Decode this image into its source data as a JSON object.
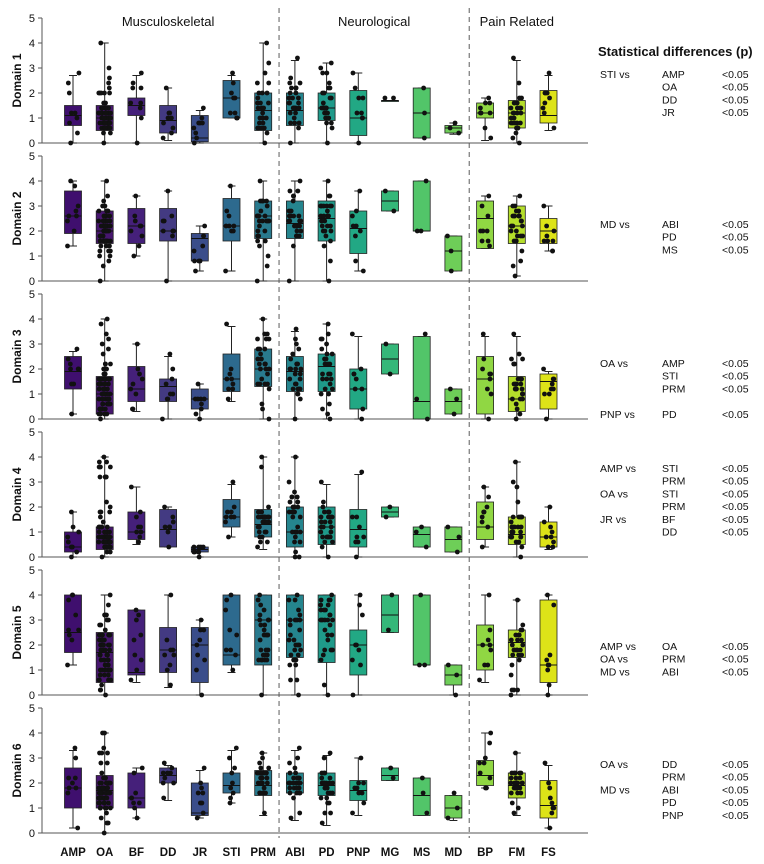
{
  "chart_data": {
    "type": "box",
    "categories": [
      "AMP",
      "OA",
      "BF",
      "DD",
      "JR",
      "STI",
      "PRM",
      "ABI",
      "PD",
      "PNP",
      "MG",
      "MS",
      "MD",
      "BP",
      "FM",
      "FS"
    ],
    "colors": [
      "#3f0f6e",
      "#47166f",
      "#45207a",
      "#433a82",
      "#3a4d8a",
      "#2d6a8e",
      "#297a8e",
      "#25858e",
      "#1f9a8a",
      "#22a884",
      "#35b779",
      "#52c569",
      "#6ece58",
      "#90d743",
      "#b5de2b",
      "#dde318"
    ],
    "groups": [
      {
        "label": "Musculoskeletal",
        "from": 0,
        "to": 6
      },
      {
        "label": "Neurological",
        "from": 7,
        "to": 12
      },
      {
        "label": "Pain Related",
        "from": 13,
        "to": 15
      }
    ],
    "ylim": [
      0,
      5
    ],
    "yticks": [
      0,
      1,
      2,
      3,
      4,
      5
    ],
    "stats_title": "Statistical differences (p)",
    "panels": [
      {
        "ylabel": "Domain 1",
        "boxes": [
          [
            0,
            0.7,
            1.1,
            1.5,
            2.7
          ],
          [
            0,
            0.5,
            1,
            1.5,
            4
          ],
          [
            0,
            1.1,
            1.5,
            1.8,
            2.7
          ],
          [
            0.1,
            0.4,
            0.9,
            1.5,
            2.2
          ],
          [
            0,
            0.05,
            0.2,
            1.1,
            1.3
          ],
          [
            1,
            1,
            1.8,
            2.5,
            2.7
          ],
          [
            0,
            0.5,
            1.3,
            2,
            4
          ],
          [
            0,
            0.7,
            1.3,
            2,
            3.3
          ],
          [
            0,
            0.9,
            1.4,
            2,
            3.2
          ],
          [
            0,
            0.3,
            1,
            2.1,
            2.8
          ],
          [
            1.7,
            1.7,
            1.7,
            1.7,
            1.7
          ],
          [
            0.2,
            0.2,
            1.2,
            2.2,
            2.2
          ],
          [
            0.35,
            0.4,
            0.6,
            0.7,
            0.8
          ],
          [
            0.1,
            1,
            1.2,
            1.6,
            1.8
          ],
          [
            0,
            0.6,
            1.2,
            1.7,
            3.3
          ],
          [
            0.5,
            0.8,
            1.1,
            2.1,
            2.7
          ]
        ],
        "stats": [
          {
            "group": "STI vs",
            "pairs": [
              {
                "vs": "AMP",
                "p": "<0.05"
              },
              {
                "vs": "OA",
                "p": "<0.05"
              },
              {
                "vs": "DD",
                "p": "<0.05"
              },
              {
                "vs": "JR",
                "p": "<0.05"
              }
            ]
          }
        ]
      },
      {
        "ylabel": "Domain 2",
        "boxes": [
          [
            1.4,
            1.9,
            2.6,
            3.6,
            4
          ],
          [
            0,
            1.5,
            2,
            2.8,
            4
          ],
          [
            1,
            1.5,
            2.2,
            2.9,
            3.4
          ],
          [
            0,
            1.6,
            2,
            2.9,
            3.6
          ],
          [
            0.4,
            0.8,
            1.7,
            1.9,
            2.2
          ],
          [
            0.4,
            1.6,
            2.2,
            3.3,
            3.8
          ],
          [
            0,
            1.7,
            2.6,
            3.2,
            4
          ],
          [
            0,
            1.7,
            2.3,
            3.2,
            4
          ],
          [
            0,
            1.6,
            2.5,
            3.2,
            4
          ],
          [
            0.4,
            1.1,
            2.1,
            2.8,
            3.6
          ],
          [
            2.8,
            2.8,
            3.2,
            3.6,
            3.6
          ],
          [
            2,
            2,
            2,
            4,
            4
          ],
          [
            0.4,
            0.4,
            1.2,
            1.8,
            1.8
          ],
          [
            1.3,
            1.3,
            2.5,
            3.2,
            3.4
          ],
          [
            0.2,
            1.5,
            2.2,
            3,
            3.4
          ],
          [
            1.2,
            1.5,
            2,
            2.5,
            3
          ]
        ],
        "stats": [
          {
            "group": "MD vs",
            "pairs": [
              {
                "vs": "ABI",
                "p": "<0.05"
              },
              {
                "vs": "PD",
                "p": "<0.05"
              },
              {
                "vs": "MS",
                "p": "<0.05"
              }
            ]
          }
        ]
      },
      {
        "ylabel": "Domain 3",
        "boxes": [
          [
            0.2,
            1.2,
            1.9,
            2.5,
            2.7
          ],
          [
            0,
            0.2,
            1,
            1.7,
            4
          ],
          [
            0.3,
            0.7,
            1.2,
            2.1,
            3
          ],
          [
            0,
            0.7,
            1.3,
            1.6,
            2.5
          ],
          [
            0,
            0.4,
            0.8,
            1.2,
            1.4
          ],
          [
            0.7,
            1.1,
            1.6,
            2.6,
            3.7
          ],
          [
            0,
            1.3,
            2,
            2.8,
            4
          ],
          [
            0,
            1.1,
            1.9,
            2.5,
            3.5
          ],
          [
            0,
            1.1,
            2.1,
            2.6,
            3.8
          ],
          [
            0,
            0.4,
            1.2,
            2,
            3.3
          ],
          [
            1.8,
            1.8,
            2.4,
            3,
            3
          ],
          [
            0,
            0,
            0.7,
            3.3,
            3.3
          ],
          [
            0.2,
            0.2,
            0.7,
            1.2,
            1.2
          ],
          [
            0,
            0.2,
            1.6,
            2.5,
            3.3
          ],
          [
            0,
            0.3,
            0.8,
            1.7,
            3.3
          ],
          [
            0,
            0.4,
            1.5,
            1.8,
            1.9
          ]
        ],
        "stats": [
          {
            "group": "OA vs",
            "pairs": [
              {
                "vs": "AMP",
                "p": "<0.05"
              },
              {
                "vs": "STI",
                "p": "<0.05"
              },
              {
                "vs": "PRM",
                "p": "<0.05"
              }
            ]
          },
          {
            "group": "PNP vs",
            "pairs": [
              {
                "vs": "PD",
                "p": "<0.05"
              }
            ]
          }
        ]
      },
      {
        "ylabel": "Domain 4",
        "boxes": [
          [
            0,
            0.2,
            0.4,
            1,
            1.8
          ],
          [
            0,
            0.3,
            0.8,
            1.2,
            4
          ],
          [
            0.5,
            0.7,
            1,
            1.8,
            2.8
          ],
          [
            0.4,
            0.4,
            1.1,
            1.9,
            2
          ],
          [
            0,
            0.2,
            0.3,
            0.4,
            0.4
          ],
          [
            0.8,
            1.2,
            1.6,
            2.3,
            2.9
          ],
          [
            0.3,
            0.8,
            1.3,
            1.9,
            4
          ],
          [
            0,
            0.4,
            1,
            2,
            4
          ],
          [
            0,
            0.5,
            1.2,
            2,
            2.9
          ],
          [
            0,
            0.4,
            1.1,
            1.9,
            3.3
          ],
          [
            1.6,
            1.6,
            1.8,
            2,
            2
          ],
          [
            0.4,
            0.4,
            0.9,
            1.2,
            1.2
          ],
          [
            0.2,
            0.2,
            0.7,
            1.2,
            1.2
          ],
          [
            0.4,
            0.7,
            1.2,
            2.2,
            2.8
          ],
          [
            0,
            0.5,
            0.9,
            1.6,
            3.8
          ],
          [
            0.3,
            0.4,
            0.8,
            1.4,
            2
          ]
        ],
        "stats": [
          {
            "group": "AMP vs",
            "pairs": [
              {
                "vs": "STI",
                "p": "<0.05"
              },
              {
                "vs": "PRM",
                "p": "<0.05"
              }
            ]
          },
          {
            "group": "OA vs",
            "pairs": [
              {
                "vs": "STI",
                "p": "<0.05"
              },
              {
                "vs": "PRM",
                "p": "<0.05"
              }
            ]
          },
          {
            "group": "JR vs",
            "pairs": [
              {
                "vs": "BF",
                "p": "<0.05"
              },
              {
                "vs": "DD",
                "p": "<0.05"
              }
            ]
          }
        ]
      },
      {
        "ylabel": "Domain 5",
        "boxes": [
          [
            1.2,
            1.7,
            2.5,
            4,
            4
          ],
          [
            0,
            0.5,
            1.7,
            2.5,
            4
          ],
          [
            0.5,
            0.8,
            0.9,
            3.4,
            3.4
          ],
          [
            0.3,
            0.9,
            1.8,
            2.7,
            4
          ],
          [
            0,
            0.5,
            2,
            2.7,
            3
          ],
          [
            0.9,
            1.2,
            1.6,
            4,
            4
          ],
          [
            0,
            1.2,
            3,
            4,
            4
          ],
          [
            0,
            1.5,
            3,
            4,
            4
          ],
          [
            0,
            1.3,
            3,
            4,
            4
          ],
          [
            0,
            0.8,
            2,
            2.6,
            4
          ],
          [
            2.5,
            2.5,
            3.2,
            4,
            4
          ],
          [
            1.2,
            1.2,
            1.2,
            4,
            4
          ],
          [
            0,
            0.4,
            0.8,
            1.2,
            1.2
          ],
          [
            0.5,
            1,
            2,
            2.8,
            4
          ],
          [
            0,
            1.5,
            2.1,
            2.6,
            3.8
          ],
          [
            0,
            0.5,
            1.2,
            3.8,
            4
          ]
        ],
        "stats": [
          {
            "group": "AMP vs",
            "pairs": [
              {
                "vs": "OA",
                "p": "<0.05"
              }
            ]
          },
          {
            "group": "OA vs",
            "pairs": [
              {
                "vs": "PRM",
                "p": "<0.05"
              }
            ]
          },
          {
            "group": "MD vs",
            "pairs": [
              {
                "vs": "ABI",
                "p": "<0.05"
              }
            ]
          }
        ]
      },
      {
        "ylabel": "Domain 6",
        "boxes": [
          [
            0.2,
            1,
            1.8,
            2.6,
            3.3
          ],
          [
            0,
            1,
            1.7,
            2.3,
            4
          ],
          [
            0.6,
            1,
            1.4,
            2.4,
            2.6
          ],
          [
            1.3,
            2,
            2.3,
            2.6,
            2.7
          ],
          [
            0.6,
            0.7,
            0.8,
            2,
            2.5
          ],
          [
            1.2,
            1.6,
            1.9,
            2.4,
            3.3
          ],
          [
            0.7,
            1.5,
            1.9,
            2.5,
            3.2
          ],
          [
            0.5,
            1.6,
            2,
            2.4,
            3.3
          ],
          [
            0.3,
            1.5,
            1.9,
            2.4,
            3.1
          ],
          [
            0.7,
            1.3,
            1.7,
            2.1,
            3
          ],
          [
            2.1,
            2.1,
            2.3,
            2.6,
            2.6
          ],
          [
            0.7,
            0.7,
            1.5,
            2.2,
            2.2
          ],
          [
            0.5,
            0.6,
            1,
            1.5,
            1.5
          ],
          [
            1.8,
            1.9,
            2.3,
            2.9,
            4
          ],
          [
            0.7,
            1.4,
            1.9,
            2.4,
            3.2
          ],
          [
            0.2,
            0.6,
            1.1,
            2.1,
            2.7
          ]
        ],
        "stats": [
          {
            "group": "OA vs",
            "pairs": [
              {
                "vs": "DD",
                "p": "<0.05"
              },
              {
                "vs": "PRM",
                "p": "<0.05"
              }
            ]
          },
          {
            "group": "MD vs",
            "pairs": [
              {
                "vs": "ABI",
                "p": "<0.05"
              },
              {
                "vs": "PD",
                "p": "<0.05"
              },
              {
                "vs": "PNP",
                "p": "<0.05"
              }
            ]
          }
        ]
      }
    ]
  }
}
